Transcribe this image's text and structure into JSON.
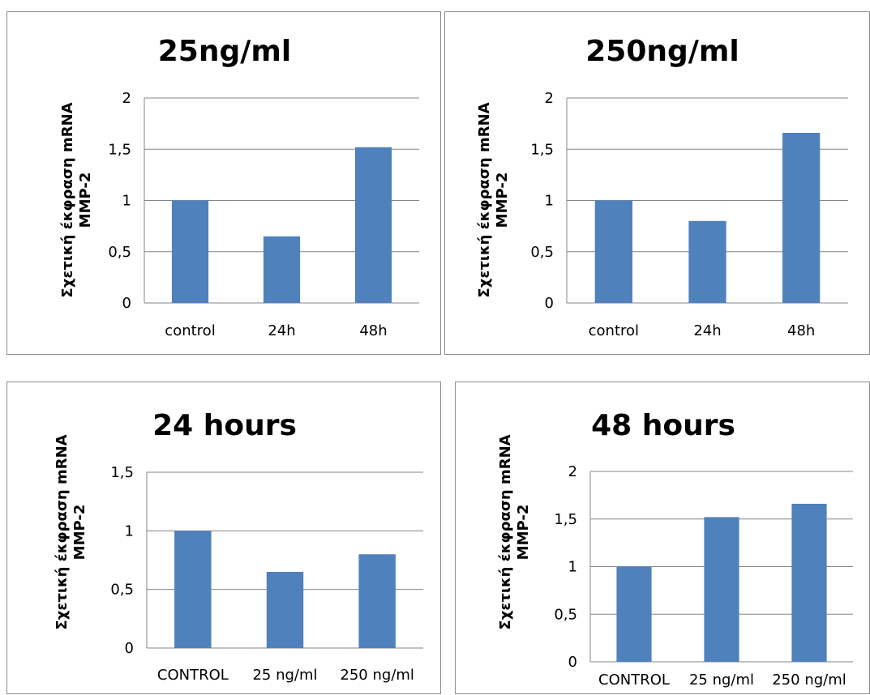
{
  "chart_data": [
    {
      "type": "bar",
      "title": "25ng/ml",
      "ylabel_lines": [
        "Σχετική έκφραση mRNA",
        "MMP-2"
      ],
      "categories": [
        "control",
        "24h",
        "48h"
      ],
      "values": [
        1.0,
        0.65,
        1.52
      ],
      "ylim": [
        0,
        2
      ],
      "yticks": [
        "0",
        "0,5",
        "1",
        "1,5",
        "2"
      ],
      "grid": true,
      "colors": {
        "bar": "#4f81bd"
      }
    },
    {
      "type": "bar",
      "title": "250ng/ml",
      "ylabel_lines": [
        "Σχετική έκφραση mRNA",
        "MMP-2"
      ],
      "categories": [
        "control",
        "24h",
        "48h"
      ],
      "values": [
        1.0,
        0.8,
        1.66
      ],
      "ylim": [
        0,
        2
      ],
      "yticks": [
        "0",
        "0,5",
        "1",
        "1,5",
        "2"
      ],
      "grid": true,
      "colors": {
        "bar": "#4f81bd"
      }
    },
    {
      "type": "bar",
      "title": "24 hours",
      "ylabel_lines": [
        "Σχετική έκφραση mRNA",
        "MMP-2"
      ],
      "categories": [
        "CONTROL",
        "25 ng/ml",
        "250 ng/ml"
      ],
      "values": [
        1.0,
        0.65,
        0.8
      ],
      "ylim": [
        0,
        1.5
      ],
      "yticks": [
        "0",
        "0,5",
        "1",
        "1,5"
      ],
      "grid": true,
      "colors": {
        "bar": "#4f81bd"
      }
    },
    {
      "type": "bar",
      "title": "48 hours",
      "ylabel_lines": [
        "Σχετική έκφραση mRNA",
        "MMP-2"
      ],
      "categories": [
        "CONTROL",
        "25 ng/ml",
        "250 ng/ml"
      ],
      "values": [
        1.0,
        1.52,
        1.66
      ],
      "ylim": [
        0,
        2
      ],
      "yticks": [
        "0",
        "0,5",
        "1",
        "1,5",
        "2"
      ],
      "grid": true,
      "colors": {
        "bar": "#4f81bd"
      }
    }
  ]
}
